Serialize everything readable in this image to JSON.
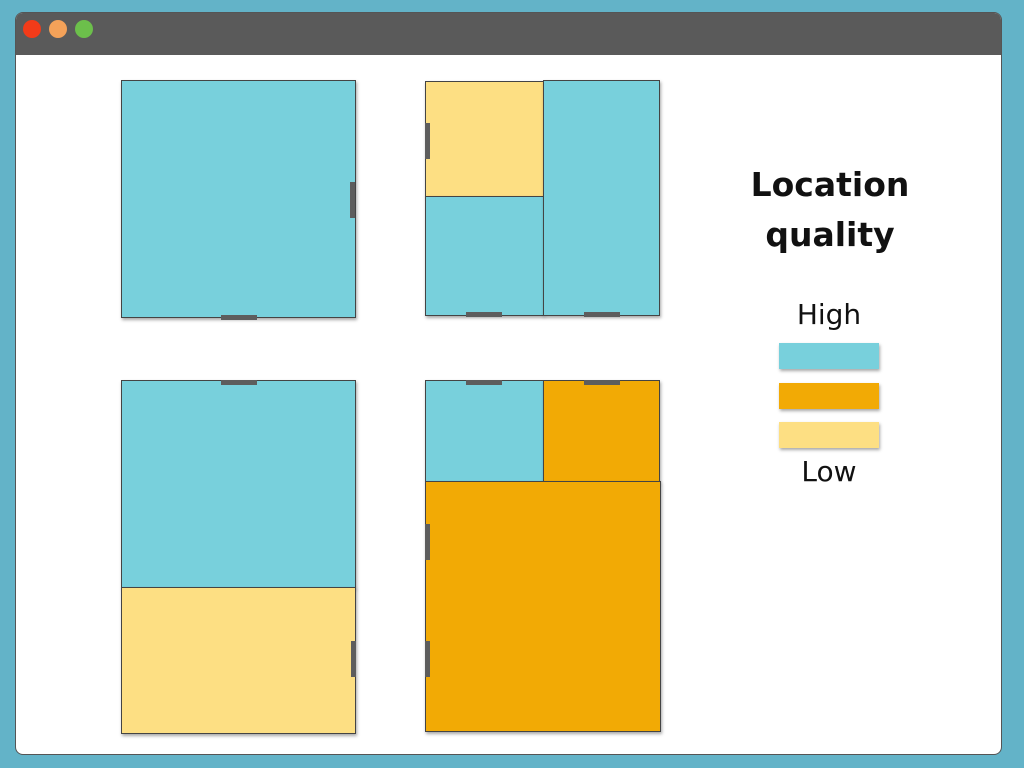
{
  "window": {
    "buttons": [
      {
        "name": "close",
        "color": "#f23b19"
      },
      {
        "name": "minimize",
        "color": "#f4a259"
      },
      {
        "name": "maximize",
        "color": "#6cbf4b"
      }
    ]
  },
  "colors": {
    "high": "#78d0dc",
    "medium": "#f2aa05",
    "low": "#fddf83",
    "wall": "#444444",
    "door": "#5d5d5d"
  },
  "floor_plans": [
    {
      "name": "plan-1",
      "rooms": [
        {
          "quality": "high"
        }
      ]
    },
    {
      "name": "plan-2",
      "rooms": [
        {
          "quality": "low"
        },
        {
          "quality": "high"
        },
        {
          "quality": "high"
        }
      ]
    },
    {
      "name": "plan-3",
      "rooms": [
        {
          "quality": "high"
        },
        {
          "quality": "low"
        }
      ]
    },
    {
      "name": "plan-4",
      "rooms": [
        {
          "quality": "high"
        },
        {
          "quality": "medium"
        },
        {
          "quality": "medium"
        }
      ]
    }
  ],
  "legend": {
    "title": "Location quality",
    "high_label": "High",
    "low_label": "Low",
    "swatches": [
      "high",
      "medium",
      "low"
    ]
  }
}
